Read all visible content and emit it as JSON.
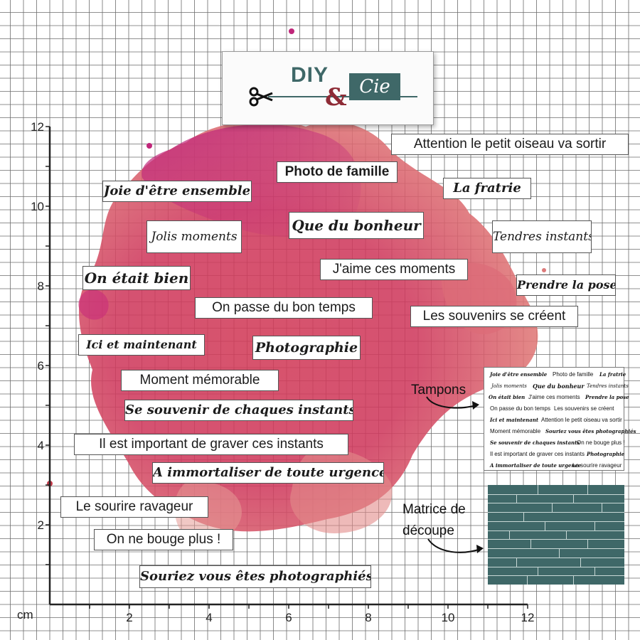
{
  "logo": {
    "diy": "DIY",
    "amp": "&",
    "cie": "Cie",
    "colors": {
      "diy": "#3f6868",
      "amp": "#8e2b36",
      "cie_bg": "#3f6868"
    }
  },
  "ruler": {
    "unit": "cm",
    "y_labels": [
      "12",
      "10",
      "8",
      "6",
      "4",
      "2"
    ],
    "x_labels": [
      "2",
      "4",
      "6",
      "8",
      "10",
      "12"
    ]
  },
  "splash": {
    "colors": [
      "#c0267a",
      "#d23c58",
      "#e07a78"
    ]
  },
  "stickers": [
    "Attention le petit oiseau va sortir",
    "Photo de famille",
    "Joie d'être ensemble",
    "La fratrie",
    "Jolis moments",
    "Que du bonheur",
    "Tendres instants",
    "J'aime ces moments",
    "On était bien",
    "Prendre la pose",
    "On passe du bon temps",
    "Les souvenirs se créent",
    "Ici et maintenant",
    "Photographie",
    "Moment mémorable",
    "Se souvenir de chaques instants",
    "Il est important de graver ces instants",
    "A immortaliser de toute urgence",
    "Le sourire ravageur",
    "On ne bouge plus !",
    "Souriez vous êtes photographiés"
  ],
  "side_labels": {
    "tampons": "Tampons",
    "matrice_1": "Matrice de",
    "matrice_2": "découpe"
  },
  "mini_sheet": {
    "rows": [
      [
        "Joie d'être ensemble",
        "Photo de famille",
        "La fratrie"
      ],
      [
        "Jolis moments",
        "Que du bonheur",
        "Tendres instants"
      ],
      [
        "On était bien",
        "J'aime ces moments",
        "Prendre la pose"
      ],
      [
        "On passe du bon temps",
        "Les souvenirs se créent"
      ],
      [
        "Ici et maintenant",
        "Attention le petit oiseau va sortir"
      ],
      [
        "Moment mémorable",
        "Souriez vous êtes photographiés"
      ],
      [
        "Se souvenir de chaques instants",
        "On ne bouge plus !"
      ],
      [
        "Il est important de graver ces instants",
        "Photographie"
      ],
      [
        "A immortaliser de toute urgence",
        "Le sourire ravageur"
      ]
    ]
  },
  "die_color": "#3f6868"
}
